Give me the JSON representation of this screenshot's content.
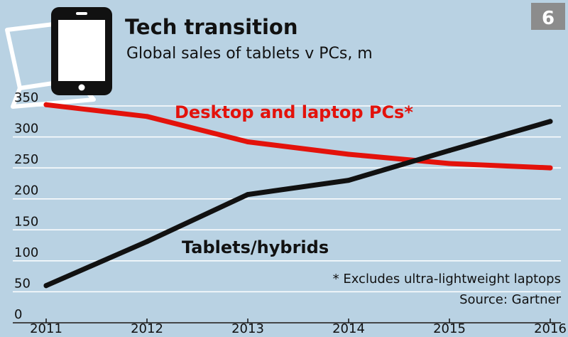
{
  "badge": "6",
  "colors": {
    "background": "#b9d2e3",
    "pcs": "#e3120b",
    "tablets": "#111111",
    "grid": "#ffffff",
    "badge": "#8c8c8c"
  },
  "icons": [
    "tablet-icon",
    "monitor-icon"
  ],
  "chart_data": {
    "type": "line",
    "title": "Tech transition",
    "subtitle": "Global sales of tablets v PCs, m",
    "x": [
      2011,
      2012,
      2013,
      2014,
      2015,
      2016
    ],
    "x_tick_labels": [
      "2011",
      "2012",
      "2013",
      "2014",
      "2015",
      "2016"
    ],
    "y_ticks": [
      0,
      50,
      100,
      150,
      200,
      250,
      300,
      350
    ],
    "y_tick_labels": [
      "0",
      "50",
      "100",
      "150",
      "200",
      "250",
      "300",
      "350"
    ],
    "ylim": [
      0,
      350
    ],
    "grid": true,
    "legend": "inline labels",
    "series": [
      {
        "name": "Desktop and laptop PCs*",
        "values": [
          352,
          333,
          292,
          272,
          257,
          250
        ],
        "color": "#e3120b"
      },
      {
        "name": "Tablets/hybrids",
        "values": [
          60,
          131,
          207,
          230,
          278,
          325
        ],
        "color": "#111111"
      }
    ],
    "annotations": [
      "* Excludes ultra-lightweight laptops",
      "Source: Gartner"
    ]
  }
}
